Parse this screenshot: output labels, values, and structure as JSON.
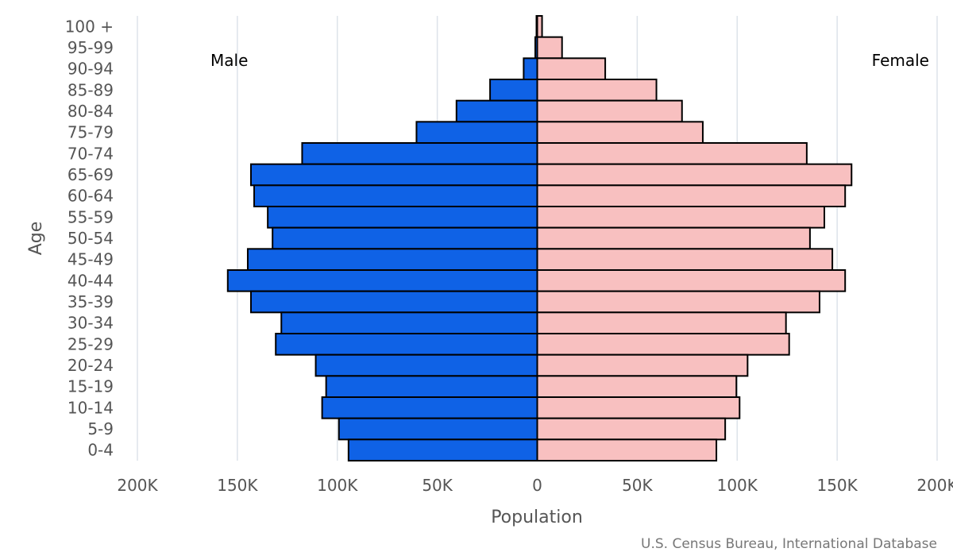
{
  "chart_data": {
    "type": "bar",
    "orientation": "horizontal-pyramid",
    "categories": [
      "100 +",
      "95-99",
      "90-94",
      "85-89",
      "80-84",
      "75-79",
      "70-74",
      "65-69",
      "60-64",
      "55-59",
      "50-54",
      "45-49",
      "40-44",
      "35-39",
      "30-34",
      "25-29",
      "20-24",
      "15-19",
      "10-14",
      "5-9",
      "0-4"
    ],
    "series": [
      {
        "name": "Male",
        "color": "#0f62e6",
        "values": [
          400,
          1000,
          6800,
          23600,
          40400,
          60400,
          117600,
          143200,
          141600,
          134800,
          132400,
          144800,
          154800,
          143200,
          128000,
          130800,
          110800,
          105600,
          107600,
          99200,
          94400
        ]
      },
      {
        "name": "Female",
        "color": "#f8c0c0",
        "values": [
          2400,
          12400,
          34000,
          59600,
          72400,
          82800,
          134800,
          157200,
          154000,
          143600,
          136400,
          147600,
          154000,
          141200,
          124400,
          126000,
          105200,
          99600,
          101200,
          94000,
          89600
        ]
      }
    ],
    "xlabel": "Population",
    "ylabel": "Age",
    "xlim": [
      -200000,
      200000
    ],
    "x_ticks": [
      -200000,
      -150000,
      -100000,
      -50000,
      0,
      50000,
      100000,
      150000,
      200000
    ],
    "x_tick_labels": [
      "200K",
      "150K",
      "100K",
      "50K",
      "0",
      "50K",
      "100K",
      "150K",
      "200K"
    ],
    "side_labels": {
      "left": "Male",
      "right": "Female"
    },
    "grid": true,
    "source": "U.S. Census Bureau, International Database"
  }
}
